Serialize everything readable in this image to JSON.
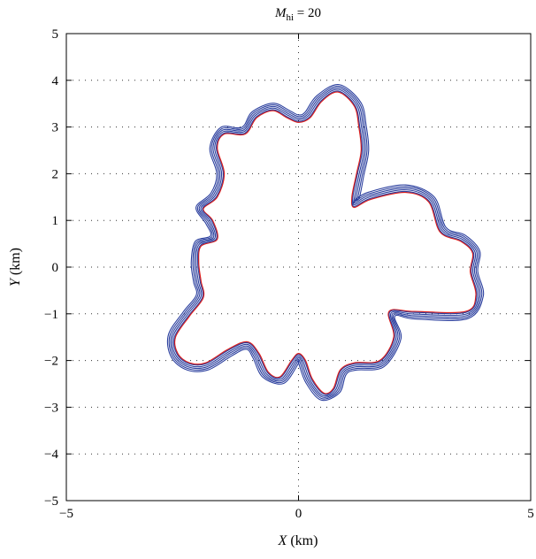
{
  "chart_data": {
    "type": "line",
    "title": {
      "var": "M",
      "sub": "hi",
      "rest": " = 20"
    },
    "xlabel": {
      "var": "X",
      "unit": " (km)"
    },
    "ylabel": {
      "var": "Y",
      "unit": " (km)"
    },
    "xlim": [
      -5,
      5
    ],
    "ylim": [
      -5,
      5
    ],
    "xticks": [
      -5,
      0,
      5
    ],
    "yticks": [
      -5,
      -4,
      -3,
      -2,
      -1,
      0,
      1,
      2,
      3,
      4,
      5
    ],
    "xtick_labels": [
      "−5",
      "0",
      "5"
    ],
    "ytick_labels": [
      "−5",
      "−4",
      "−3",
      "−2",
      "−1",
      "0",
      "1",
      "2",
      "3",
      "4",
      "5"
    ],
    "grid": "dotted",
    "colors": {
      "target": "#e0201c",
      "estimates": "#2b3f9e"
    },
    "series": [
      {
        "role": "target",
        "points": [
          [
            3.7,
            -0.1
          ],
          [
            3.82,
            -0.6
          ],
          [
            3.6,
            -0.95
          ],
          [
            2.5,
            -0.95
          ],
          [
            1.95,
            -0.95
          ],
          [
            2.05,
            -1.5
          ],
          [
            1.75,
            -2.0
          ],
          [
            1.2,
            -2.05
          ],
          [
            0.9,
            -2.2
          ],
          [
            0.75,
            -2.6
          ],
          [
            0.55,
            -2.7
          ],
          [
            0.3,
            -2.4
          ],
          [
            0.15,
            -2.0
          ],
          [
            0.0,
            -1.85
          ],
          [
            -0.15,
            -2.0
          ],
          [
            -0.4,
            -2.35
          ],
          [
            -0.65,
            -2.25
          ],
          [
            -0.85,
            -1.85
          ],
          [
            -1.1,
            -1.6
          ],
          [
            -1.5,
            -1.75
          ],
          [
            -2.0,
            -2.05
          ],
          [
            -2.35,
            -2.05
          ],
          [
            -2.6,
            -1.85
          ],
          [
            -2.65,
            -1.5
          ],
          [
            -2.35,
            -1.05
          ],
          [
            -2.05,
            -0.65
          ],
          [
            -2.1,
            -0.3
          ],
          [
            -2.15,
            0.1
          ],
          [
            -2.1,
            0.45
          ],
          [
            -1.75,
            0.6
          ],
          [
            -1.85,
            1.0
          ],
          [
            -2.05,
            1.25
          ],
          [
            -1.75,
            1.5
          ],
          [
            -1.6,
            2.0
          ],
          [
            -1.75,
            2.55
          ],
          [
            -1.6,
            2.85
          ],
          [
            -1.15,
            2.85
          ],
          [
            -0.9,
            3.2
          ],
          [
            -0.55,
            3.35
          ],
          [
            -0.25,
            3.2
          ],
          [
            0.0,
            3.1
          ],
          [
            0.25,
            3.2
          ],
          [
            0.5,
            3.55
          ],
          [
            0.85,
            3.75
          ],
          [
            1.2,
            3.45
          ],
          [
            1.3,
            3.0
          ],
          [
            1.35,
            2.5
          ],
          [
            1.25,
            2.0
          ],
          [
            1.15,
            1.5
          ],
          [
            1.2,
            1.28
          ],
          [
            1.55,
            1.45
          ],
          [
            2.3,
            1.6
          ],
          [
            2.8,
            1.4
          ],
          [
            3.05,
            0.75
          ],
          [
            3.5,
            0.55
          ],
          [
            3.75,
            0.3
          ],
          [
            3.7,
            -0.1
          ]
        ]
      },
      {
        "role": "estimate",
        "offset": 0.02
      },
      {
        "role": "estimate",
        "offset": 0.055
      },
      {
        "role": "estimate",
        "offset": 0.09
      },
      {
        "role": "estimate",
        "offset": 0.125
      },
      {
        "role": "estimate",
        "offset": 0.16
      }
    ]
  }
}
